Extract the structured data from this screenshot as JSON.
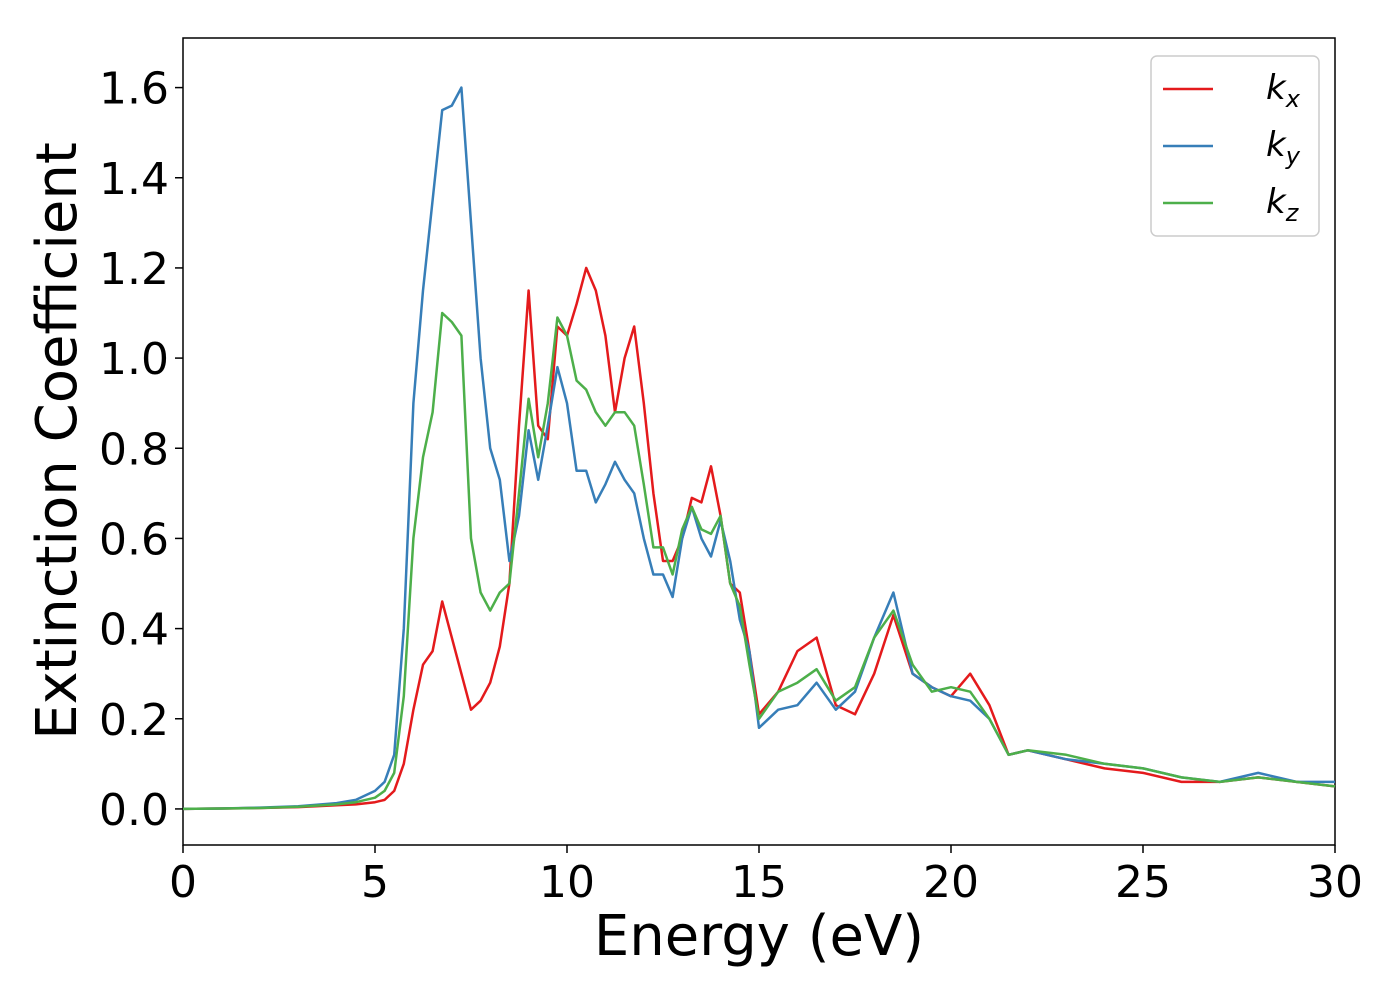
{
  "chart_data": {
    "type": "line",
    "xlabel": "Energy (eV)",
    "ylabel": "Extinction Coefficient",
    "xlim": [
      0,
      30
    ],
    "ylim": [
      -0.08,
      1.71
    ],
    "xticks": [
      0,
      5,
      10,
      15,
      20,
      25,
      30
    ],
    "yticks": [
      {
        "value": 0,
        "label": "0.0"
      },
      0.2,
      0.4,
      0.6,
      0.8,
      {
        "value": 1,
        "label": "1.0"
      },
      1.2,
      1.4,
      1.6
    ],
    "legend": "upper right",
    "x": [
      0,
      1,
      2,
      3,
      4,
      4.5,
      5,
      5.25,
      5.5,
      5.75,
      6,
      6.25,
      6.5,
      6.75,
      7,
      7.25,
      7.5,
      7.75,
      8,
      8.25,
      8.5,
      8.75,
      9,
      9.25,
      9.5,
      9.75,
      10,
      10.25,
      10.5,
      10.75,
      11,
      11.25,
      11.5,
      11.75,
      12,
      12.25,
      12.5,
      12.75,
      13,
      13.25,
      13.5,
      13.75,
      14,
      14.25,
      14.5,
      14.75,
      15,
      15.5,
      16,
      16.5,
      17,
      17.5,
      18,
      18.5,
      19,
      19.5,
      20,
      20.5,
      21,
      21.5,
      22,
      23,
      24,
      25,
      26,
      27,
      28,
      29,
      30
    ],
    "series": [
      {
        "name": "kx",
        "color": "#e41a1c",
        "values": [
          0,
          0.001,
          0.002,
          0.004,
          0.008,
          0.01,
          0.015,
          0.02,
          0.04,
          0.1,
          0.22,
          0.32,
          0.35,
          0.46,
          0.38,
          0.3,
          0.22,
          0.24,
          0.28,
          0.36,
          0.5,
          0.85,
          1.15,
          0.85,
          0.82,
          1.07,
          1.05,
          1.12,
          1.2,
          1.15,
          1.05,
          0.88,
          1.0,
          1.07,
          0.9,
          0.7,
          0.55,
          0.55,
          0.6,
          0.69,
          0.68,
          0.76,
          0.65,
          0.5,
          0.48,
          0.35,
          0.21,
          0.26,
          0.35,
          0.38,
          0.23,
          0.21,
          0.3,
          0.43,
          0.3,
          0.27,
          0.25,
          0.3,
          0.23,
          0.12,
          0.13,
          0.11,
          0.09,
          0.08,
          0.06,
          0.06,
          0.07,
          0.06,
          0.05
        ]
      },
      {
        "name": "ky",
        "color": "#377eb8",
        "values": [
          0,
          0.001,
          0.003,
          0.006,
          0.013,
          0.02,
          0.04,
          0.06,
          0.12,
          0.4,
          0.9,
          1.15,
          1.35,
          1.55,
          1.56,
          1.6,
          1.3,
          1.0,
          0.8,
          0.73,
          0.55,
          0.65,
          0.84,
          0.73,
          0.85,
          0.98,
          0.9,
          0.75,
          0.75,
          0.68,
          0.72,
          0.77,
          0.73,
          0.7,
          0.6,
          0.52,
          0.52,
          0.47,
          0.6,
          0.67,
          0.6,
          0.56,
          0.64,
          0.55,
          0.42,
          0.35,
          0.18,
          0.22,
          0.23,
          0.28,
          0.22,
          0.26,
          0.38,
          0.48,
          0.3,
          0.27,
          0.25,
          0.24,
          0.2,
          0.12,
          0.13,
          0.11,
          0.1,
          0.09,
          0.07,
          0.06,
          0.08,
          0.06,
          0.06
        ]
      },
      {
        "name": "kz",
        "color": "#4daf4a",
        "values": [
          0,
          0.001,
          0.002,
          0.005,
          0.01,
          0.015,
          0.025,
          0.04,
          0.08,
          0.25,
          0.6,
          0.78,
          0.88,
          1.1,
          1.08,
          1.05,
          0.6,
          0.48,
          0.44,
          0.48,
          0.5,
          0.7,
          0.91,
          0.78,
          0.9,
          1.09,
          1.05,
          0.95,
          0.93,
          0.88,
          0.85,
          0.88,
          0.88,
          0.85,
          0.72,
          0.58,
          0.58,
          0.52,
          0.62,
          0.67,
          0.62,
          0.61,
          0.65,
          0.5,
          0.45,
          0.32,
          0.2,
          0.26,
          0.28,
          0.31,
          0.24,
          0.27,
          0.38,
          0.44,
          0.32,
          0.26,
          0.27,
          0.26,
          0.2,
          0.12,
          0.13,
          0.12,
          0.1,
          0.09,
          0.07,
          0.06,
          0.07,
          0.06,
          0.05
        ]
      }
    ]
  }
}
